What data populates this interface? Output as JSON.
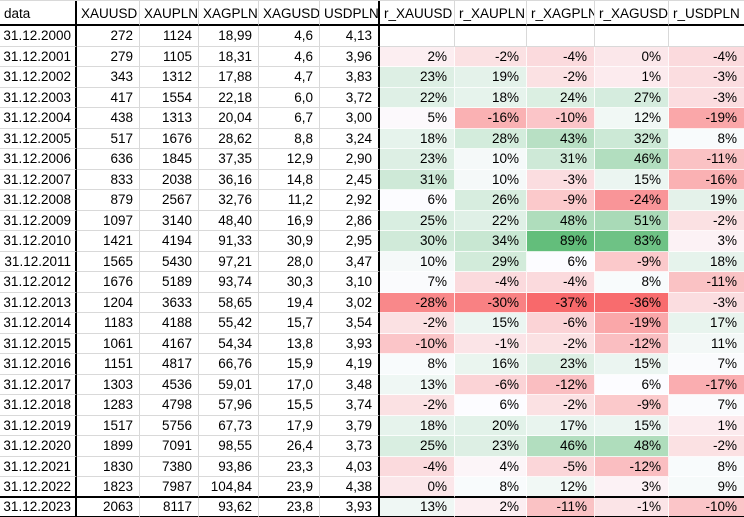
{
  "table": {
    "header": {
      "date_label": "data",
      "columns": [
        "XAUUSD",
        "XAUPLN",
        "XAGPLN",
        "XAGUSD",
        "USDPLN",
        "r_XAUUSD",
        "r_XAUPLN",
        "r_XAGPLN",
        "r_XAGUSD",
        "r_USDPLN"
      ]
    },
    "rows": [
      {
        "date": "31.12.2000",
        "values": [
          "272",
          "1124",
          "18,99",
          "4,6",
          "4,13"
        ],
        "returns": [
          null,
          null,
          null,
          null,
          null
        ]
      },
      {
        "date": "31.12.2001",
        "values": [
          "279",
          "1105",
          "18,31",
          "4,6",
          "3,96"
        ],
        "returns": [
          2,
          -2,
          -4,
          0,
          -4
        ]
      },
      {
        "date": "31.12.2002",
        "values": [
          "343",
          "1312",
          "17,88",
          "4,7",
          "3,83"
        ],
        "returns": [
          23,
          19,
          -2,
          1,
          -3
        ]
      },
      {
        "date": "31.12.2003",
        "values": [
          "417",
          "1554",
          "22,18",
          "6,0",
          "3,72"
        ],
        "returns": [
          22,
          18,
          24,
          27,
          -3
        ]
      },
      {
        "date": "31.12.2004",
        "values": [
          "438",
          "1313",
          "20,04",
          "6,7",
          "3,00"
        ],
        "returns": [
          5,
          -16,
          -10,
          12,
          -19
        ]
      },
      {
        "date": "31.12.2005",
        "values": [
          "517",
          "1676",
          "28,62",
          "8,8",
          "3,24"
        ],
        "returns": [
          18,
          28,
          43,
          32,
          8
        ]
      },
      {
        "date": "31.12.2006",
        "values": [
          "636",
          "1845",
          "37,35",
          "12,9",
          "2,90"
        ],
        "returns": [
          23,
          10,
          31,
          46,
          -11
        ]
      },
      {
        "date": "31.12.2007",
        "values": [
          "833",
          "2038",
          "36,16",
          "14,8",
          "2,45"
        ],
        "returns": [
          31,
          10,
          -3,
          15,
          -16
        ]
      },
      {
        "date": "31.12.2008",
        "values": [
          "879",
          "2567",
          "32,76",
          "11,2",
          "2,92"
        ],
        "returns": [
          6,
          26,
          -9,
          -24,
          19
        ]
      },
      {
        "date": "31.12.2009",
        "values": [
          "1097",
          "3140",
          "48,40",
          "16,9",
          "2,86"
        ],
        "returns": [
          25,
          22,
          48,
          51,
          -2
        ]
      },
      {
        "date": "31.12.2010",
        "values": [
          "1421",
          "4194",
          "91,33",
          "30,9",
          "2,95"
        ],
        "returns": [
          30,
          34,
          89,
          83,
          3
        ]
      },
      {
        "date": "31.12.2011",
        "values": [
          "1565",
          "5430",
          "97,21",
          "28,0",
          "3,47"
        ],
        "returns": [
          10,
          29,
          6,
          -9,
          18
        ]
      },
      {
        "date": "31.12.2012",
        "values": [
          "1676",
          "5189",
          "93,74",
          "30,3",
          "3,10"
        ],
        "returns": [
          7,
          -4,
          -4,
          8,
          -11
        ]
      },
      {
        "date": "31.12.2013",
        "values": [
          "1204",
          "3633",
          "58,65",
          "19,4",
          "3,02"
        ],
        "returns": [
          -28,
          -30,
          -37,
          -36,
          -3
        ]
      },
      {
        "date": "31.12.2014",
        "values": [
          "1183",
          "4188",
          "55,42",
          "15,7",
          "3,54"
        ],
        "returns": [
          -2,
          15,
          -6,
          -19,
          17
        ]
      },
      {
        "date": "31.12.2015",
        "values": [
          "1061",
          "4167",
          "54,34",
          "13,8",
          "3,93"
        ],
        "returns": [
          -10,
          -1,
          -2,
          -12,
          11
        ]
      },
      {
        "date": "31.12.2016",
        "values": [
          "1151",
          "4817",
          "66,76",
          "15,9",
          "4,19"
        ],
        "returns": [
          8,
          16,
          23,
          15,
          7
        ]
      },
      {
        "date": "31.12.2017",
        "values": [
          "1303",
          "4536",
          "59,01",
          "17,0",
          "3,48"
        ],
        "returns": [
          13,
          -6,
          -12,
          6,
          -17
        ]
      },
      {
        "date": "31.12.2018",
        "values": [
          "1283",
          "4798",
          "57,96",
          "15,5",
          "3,74"
        ],
        "returns": [
          -2,
          6,
          -2,
          -9,
          7
        ]
      },
      {
        "date": "31.12.2019",
        "values": [
          "1517",
          "5756",
          "67,73",
          "17,9",
          "3,79"
        ],
        "returns": [
          18,
          20,
          17,
          15,
          1
        ]
      },
      {
        "date": "31.12.2020",
        "values": [
          "1899",
          "7091",
          "98,55",
          "26,4",
          "3,73"
        ],
        "returns": [
          25,
          23,
          46,
          48,
          -2
        ]
      },
      {
        "date": "31.12.2021",
        "values": [
          "1830",
          "7380",
          "93,86",
          "23,3",
          "4,03"
        ],
        "returns": [
          -4,
          4,
          -5,
          -12,
          8
        ]
      },
      {
        "date": "31.12.2022",
        "values": [
          "1823",
          "7987",
          "104,84",
          "23,9",
          "4,38"
        ],
        "returns": [
          0,
          8,
          12,
          3,
          9
        ]
      },
      {
        "date": "31.12.2023",
        "values": [
          "2063",
          "8117",
          "93,62",
          "23,8",
          "3,93"
        ],
        "returns": [
          13,
          2,
          -11,
          -1,
          -10
        ]
      }
    ]
  },
  "color_scale": {
    "min": -37,
    "mid": 6,
    "max": 89,
    "unit": "%"
  },
  "colors": {
    "scale_min_color": "#F8696B",
    "scale_mid_color": "#FCFCFF",
    "scale_max_color": "#63BE7B",
    "gridline": "#D9D9D9",
    "border": "#000000",
    "background": "#FFFFFF",
    "text": "#000000"
  }
}
